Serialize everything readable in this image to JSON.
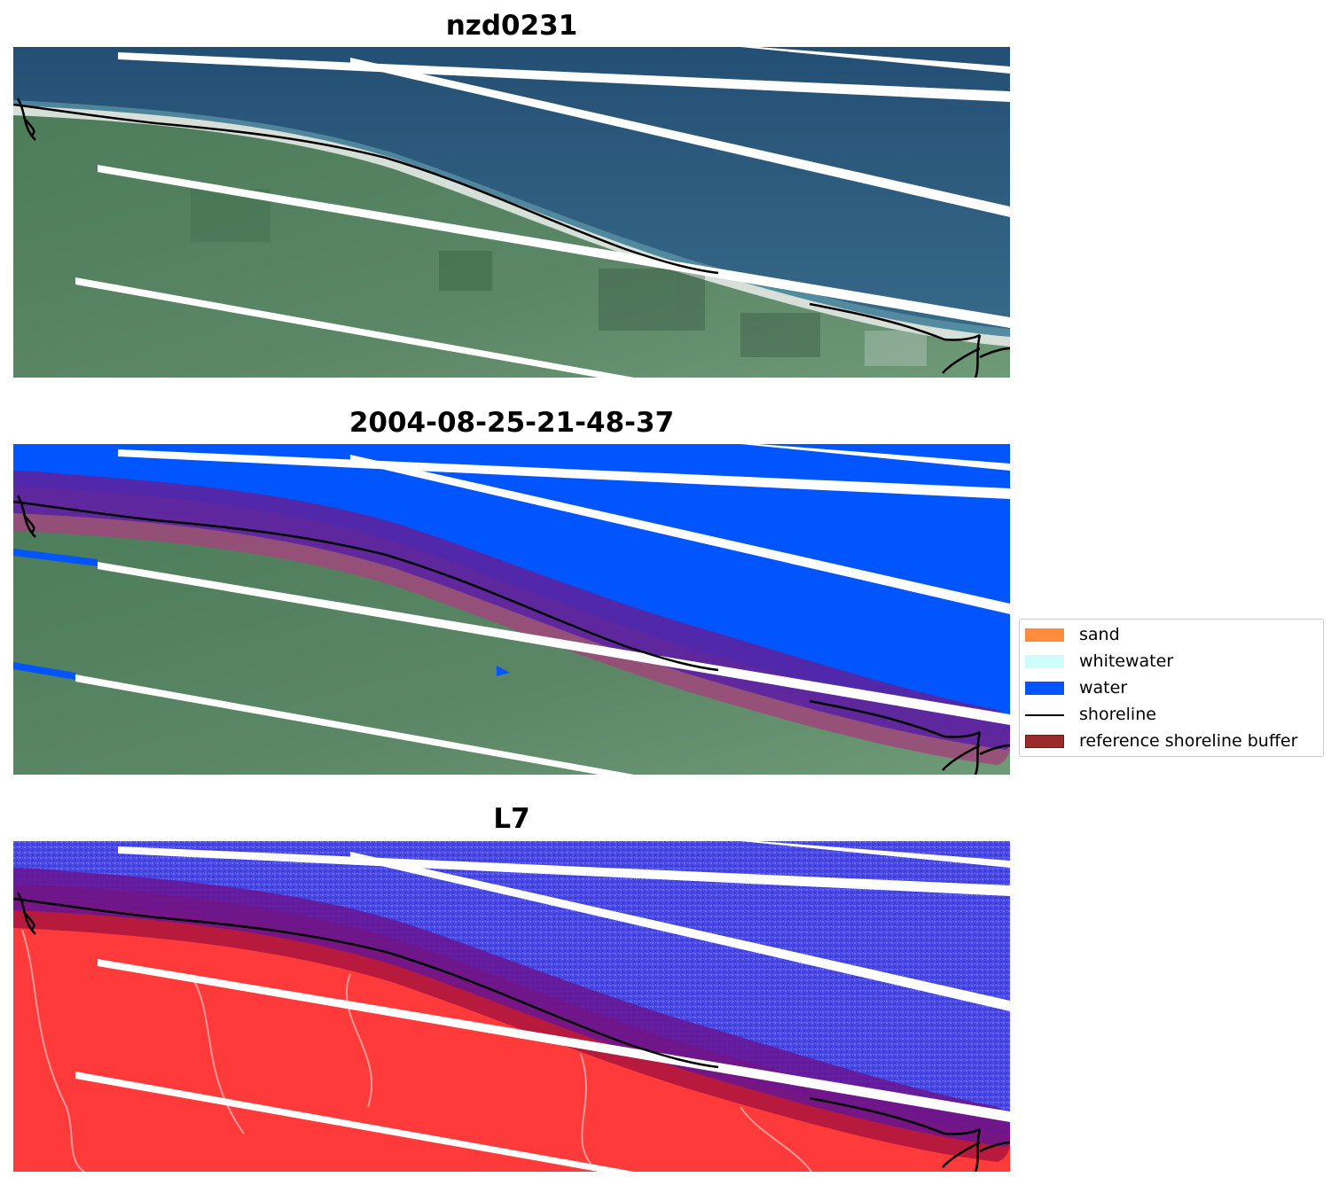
{
  "panels": [
    {
      "title": "nzd0231",
      "kind": "rgb"
    },
    {
      "title": "2004-08-25-21-48-37",
      "kind": "classified"
    },
    {
      "title": "L7",
      "kind": "index"
    }
  ],
  "legend": {
    "placement": "right-middle",
    "items": [
      {
        "label": "sand",
        "type": "patch",
        "color": "#ff8c3c"
      },
      {
        "label": "whitewater",
        "type": "patch",
        "color": "#ccfffa"
      },
      {
        "label": "water",
        "type": "patch",
        "color": "#0055ff"
      },
      {
        "label": "shoreline",
        "type": "line",
        "color": "#000000"
      },
      {
        "label": "reference shoreline buffer",
        "type": "patch",
        "color": "#9b2a2a",
        "edge": "#7a1010"
      }
    ]
  },
  "colors": {
    "ocean_rgb": "#2f5f86",
    "land_rgb": "#4f7d5a",
    "beach_rgb": "#d7e0d8",
    "water_class": "#0055ff",
    "buffer_overlay": "#7a2a8a",
    "land_index": "#ff3a3a",
    "water_index": "#4848e6",
    "scanline_gap": "#ffffff",
    "shoreline": "#000000"
  }
}
